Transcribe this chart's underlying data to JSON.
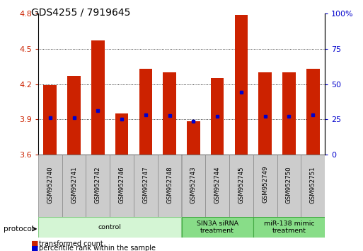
{
  "title": "GDS4255 / 7919645",
  "samples": [
    "GSM952740",
    "GSM952741",
    "GSM952742",
    "GSM952746",
    "GSM952747",
    "GSM952748",
    "GSM952743",
    "GSM952744",
    "GSM952745",
    "GSM952749",
    "GSM952750",
    "GSM952751"
  ],
  "bar_tops": [
    4.19,
    4.27,
    4.57,
    3.95,
    4.33,
    4.3,
    3.88,
    4.25,
    4.79,
    4.3,
    4.3,
    4.33
  ],
  "bar_bottom": 3.6,
  "blue_dot_values": [
    3.91,
    3.915,
    3.975,
    3.9,
    3.935,
    3.93,
    3.885,
    3.925,
    4.13,
    3.925,
    3.925,
    3.935
  ],
  "bar_color": "#cc2200",
  "blue_dot_color": "#0000cc",
  "ylim_left": [
    3.6,
    4.8
  ],
  "ylim_right": [
    0,
    100
  ],
  "yticks_left": [
    3.6,
    3.9,
    4.2,
    4.5,
    4.8
  ],
  "yticks_right": [
    0,
    25,
    50,
    75,
    100
  ],
  "ytick_labels_left": [
    "3.6",
    "3.9",
    "4.2",
    "4.5",
    "4.8"
  ],
  "ytick_labels_right": [
    "0",
    "25",
    "50",
    "75",
    "100%"
  ],
  "groups": [
    {
      "label": "control",
      "start": 0,
      "end": 5,
      "color": "#d4f5d4",
      "edge_color": "#88cc88"
    },
    {
      "label": "SIN3A siRNA\ntreatment",
      "start": 6,
      "end": 8,
      "color": "#88dd88",
      "edge_color": "#44aa44"
    },
    {
      "label": "miR-138 mimic\ntreatment",
      "start": 9,
      "end": 11,
      "color": "#88dd88",
      "edge_color": "#44aa44"
    }
  ],
  "protocol_label": "protocol",
  "legend_items": [
    {
      "label": "transformed count",
      "color": "#cc2200"
    },
    {
      "label": "percentile rank within the sample",
      "color": "#0000cc"
    }
  ],
  "bar_width": 0.55,
  "title_fontsize": 10,
  "tick_fontsize": 8,
  "label_color_left": "#cc2200",
  "label_color_right": "#0000cc"
}
